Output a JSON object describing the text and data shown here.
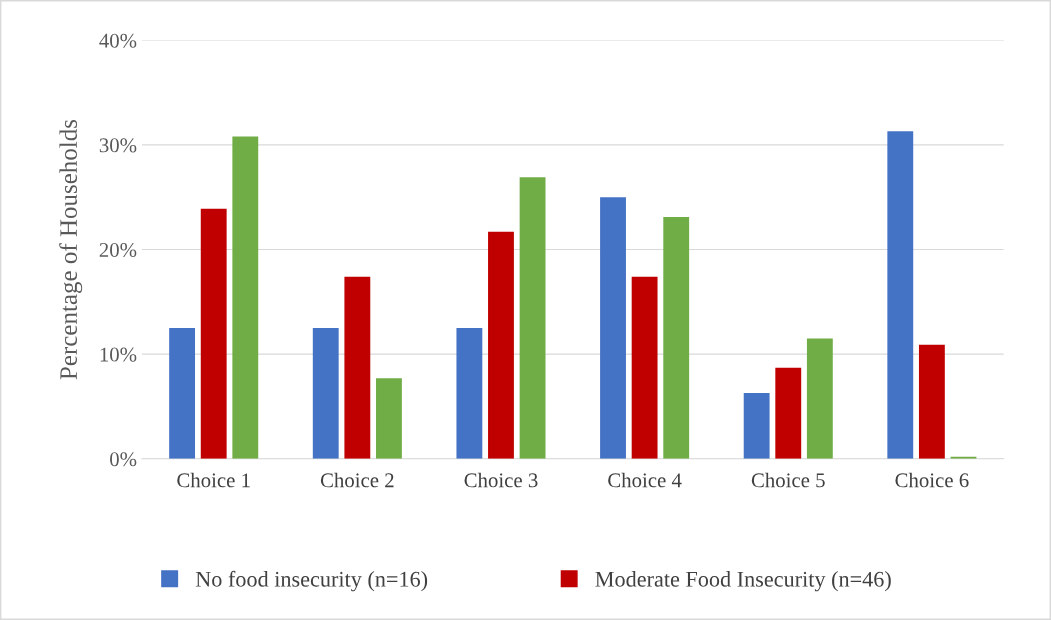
{
  "chart_data": {
    "type": "bar",
    "ylabel": "Percentage of Households",
    "categories": [
      "Choice 1",
      "Choice 2",
      "Choice 3",
      "Choice 4",
      "Choice 5",
      "Choice 6"
    ],
    "series": [
      {
        "name": "No food insecurity (n=16)",
        "color": "#4472c4",
        "values": [
          12.5,
          12.5,
          12.5,
          25,
          6.3,
          31.3
        ]
      },
      {
        "name": "Moderate Food Insecurity (n=46)",
        "color": "#c00000",
        "values": [
          23.9,
          17.4,
          21.7,
          17.4,
          8.7,
          10.9
        ]
      },
      {
        "color": "#70ad47",
        "values": [
          30.8,
          7.7,
          26.9,
          23.1,
          11.5,
          0.2
        ]
      }
    ],
    "ylim": [
      0,
      40
    ],
    "yticks": [
      {
        "value": 0,
        "label": "0%"
      },
      {
        "value": 10,
        "label": "10%"
      },
      {
        "value": 20,
        "label": "20%"
      },
      {
        "value": 30,
        "label": "30%"
      },
      {
        "value": 40,
        "label": "40%"
      }
    ],
    "grid": "y",
    "legend": "bottom"
  }
}
